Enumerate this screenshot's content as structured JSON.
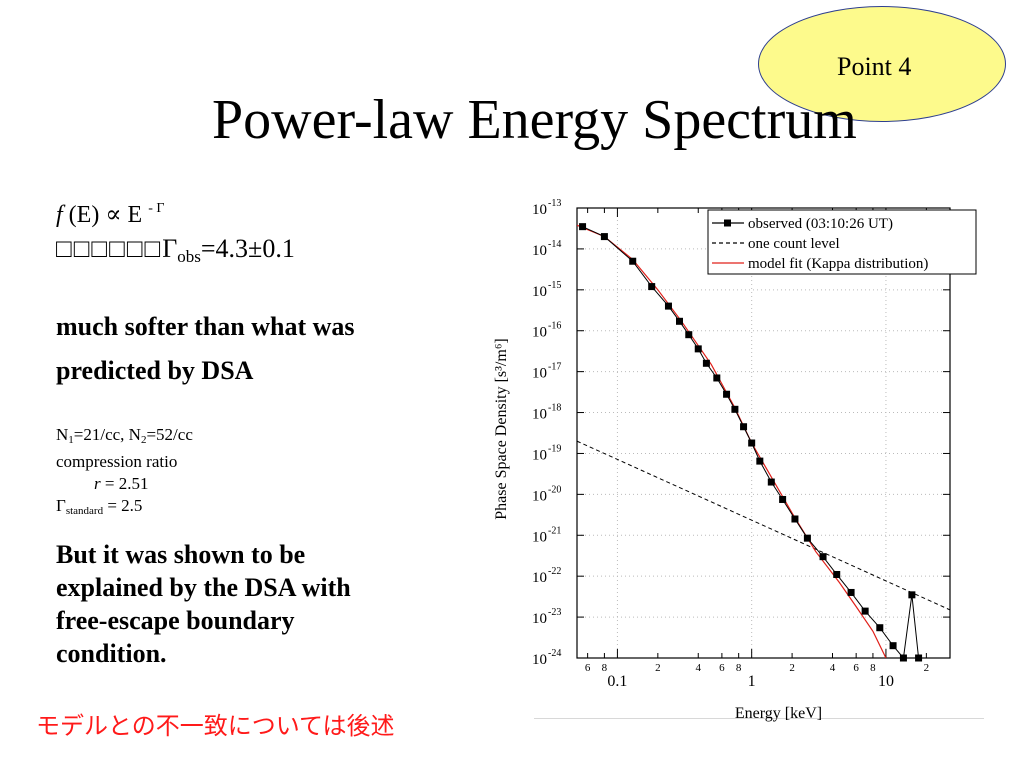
{
  "badge": {
    "label": "Point 4"
  },
  "title": "Power-law Energy Spectrum",
  "formula": {
    "func": "f",
    "body": " (E) ∝ E ",
    "exp": "- Γ"
  },
  "gamma_obs": {
    "garbled": "□□□□□□",
    "symbol": "Γ",
    "sub": "obs",
    "value": "=4.3±0.1"
  },
  "softer": {
    "line1": "much softer than what was",
    "line2": "predicted by DSA"
  },
  "params": {
    "n1_prefix": "N",
    "n1_sub": "1",
    "n1_val": "=21/cc, N",
    "n2_sub": "2",
    "n2_val": "=52/cc",
    "compression": "compression ratio",
    "r_var": "r",
    "r_val": " = 2.51",
    "gamma_std": "Γ",
    "gamma_std_sub": "standard",
    "gamma_std_val": " = 2.5"
  },
  "explained": {
    "line1": "But it was shown to be",
    "line2": "explained by the DSA with",
    "line3": "free-escape boundary",
    "line4": "condition."
  },
  "jp_note": "モデルとの不一致については後述",
  "chart_data": {
    "type": "line",
    "xlabel": "Energy [keV]",
    "ylabel": "Phase Space Density [s³/m⁶]",
    "xscale": "log",
    "yscale": "log",
    "xlim": [
      0.05,
      30
    ],
    "ylim": [
      1e-24,
      1e-13
    ],
    "x_major_ticks": [
      {
        "v": 0.1,
        "label": "0.1"
      },
      {
        "v": 1,
        "label": "1"
      },
      {
        "v": 10,
        "label": "10"
      }
    ],
    "x_minor_ticks": [
      {
        "v": 0.06,
        "label": "6"
      },
      {
        "v": 0.08,
        "label": "8"
      },
      {
        "v": 0.2,
        "label": "2"
      },
      {
        "v": 0.4,
        "label": "4"
      },
      {
        "v": 0.6,
        "label": "6"
      },
      {
        "v": 0.8,
        "label": "8"
      },
      {
        "v": 2,
        "label": "2"
      },
      {
        "v": 4,
        "label": "4"
      },
      {
        "v": 6,
        "label": "6"
      },
      {
        "v": 8,
        "label": "8"
      },
      {
        "v": 20,
        "label": "2"
      }
    ],
    "y_ticks": [
      -13,
      -14,
      -15,
      -16,
      -17,
      -18,
      -19,
      -20,
      -21,
      -22,
      -23,
      -24
    ],
    "y_tick_base": "10",
    "legend_position": "top-right",
    "series": [
      {
        "name": "observed (03:10:26 UT)",
        "color": "#000000",
        "style": "line+square",
        "points": [
          [
            0.055,
            3.5e-14
          ],
          [
            0.08,
            2e-14
          ],
          [
            0.13,
            5e-15
          ],
          [
            0.18,
            1.2e-15
          ],
          [
            0.24,
            4e-16
          ],
          [
            0.29,
            1.7e-16
          ],
          [
            0.34,
            8e-17
          ],
          [
            0.4,
            3.6e-17
          ],
          [
            0.46,
            1.6e-17
          ],
          [
            0.55,
            7e-18
          ],
          [
            0.65,
            2.8e-18
          ],
          [
            0.75,
            1.2e-18
          ],
          [
            0.87,
            4.5e-19
          ],
          [
            1.0,
            1.8e-19
          ],
          [
            1.15,
            6.5e-20
          ],
          [
            1.4,
            2e-20
          ],
          [
            1.7,
            7.5e-21
          ],
          [
            2.1,
            2.5e-21
          ],
          [
            2.6,
            8.5e-22
          ],
          [
            3.4,
            3e-22
          ],
          [
            4.3,
            1.1e-22
          ],
          [
            5.5,
            4e-23
          ],
          [
            7.0,
            1.4e-23
          ],
          [
            9.0,
            5.5e-24
          ],
          [
            11.3,
            2e-24
          ],
          [
            13.5,
            1e-24
          ],
          [
            15.6,
            3.5e-23
          ],
          [
            17.5,
            1e-24
          ]
        ]
      },
      {
        "name": "one count level",
        "color": "#000000",
        "style": "dashed",
        "points": [
          [
            0.05,
            2e-19
          ],
          [
            30,
            1.5e-23
          ]
        ]
      },
      {
        "name": "model fit (Kappa distribution)",
        "color": "#e0201a",
        "style": "line",
        "points": [
          [
            0.05,
            3.8e-14
          ],
          [
            0.08,
            2e-14
          ],
          [
            0.13,
            5.5e-15
          ],
          [
            0.2,
            1e-15
          ],
          [
            0.3,
            1.7e-16
          ],
          [
            0.5,
            1.5e-17
          ],
          [
            0.75,
            1.3e-18
          ],
          [
            1.0,
            1.8e-19
          ],
          [
            1.5,
            1.8e-20
          ],
          [
            2.0,
            3.5e-21
          ],
          [
            3.0,
            4e-22
          ],
          [
            4.5,
            7e-23
          ],
          [
            6.0,
            1.8e-23
          ],
          [
            8.0,
            4.5e-24
          ],
          [
            10.0,
            1e-24
          ]
        ]
      }
    ]
  }
}
